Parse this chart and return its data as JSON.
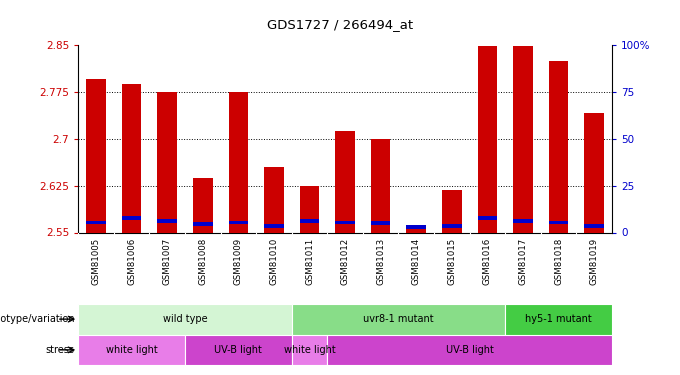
{
  "title": "GDS1727 / 266494_at",
  "samples": [
    "GSM81005",
    "GSM81006",
    "GSM81007",
    "GSM81008",
    "GSM81009",
    "GSM81010",
    "GSM81011",
    "GSM81012",
    "GSM81013",
    "GSM81014",
    "GSM81015",
    "GSM81016",
    "GSM81017",
    "GSM81018",
    "GSM81019"
  ],
  "red_values": [
    2.795,
    2.788,
    2.775,
    2.638,
    2.775,
    2.655,
    2.625,
    2.712,
    2.7,
    2.558,
    2.618,
    2.848,
    2.848,
    2.824,
    2.742
  ],
  "blue_values": [
    2.563,
    2.57,
    2.565,
    2.56,
    2.563,
    2.558,
    2.565,
    2.563,
    2.562,
    2.556,
    2.558,
    2.57,
    2.565,
    2.563,
    2.558
  ],
  "ymin": 2.55,
  "ymax": 2.85,
  "yticks": [
    2.55,
    2.625,
    2.7,
    2.775,
    2.85
  ],
  "ytick_labels": [
    "2.55",
    "2.625",
    "2.7",
    "2.775",
    "2.85"
  ],
  "right_yticks": [
    0,
    25,
    50,
    75,
    100
  ],
  "right_ytick_labels": [
    "0",
    "25",
    "50",
    "75",
    "100%"
  ],
  "genotype_groups": [
    {
      "label": "wild type",
      "start": 0,
      "end": 6,
      "color": "#d4f5d4"
    },
    {
      "label": "uvr8-1 mutant",
      "start": 6,
      "end": 12,
      "color": "#88dd88"
    },
    {
      "label": "hy5-1 mutant",
      "start": 12,
      "end": 15,
      "color": "#44cc44"
    }
  ],
  "stress_groups": [
    {
      "label": "white light",
      "start": 0,
      "end": 3,
      "color": "#e87de8"
    },
    {
      "label": "UV-B light",
      "start": 3,
      "end": 6,
      "color": "#cc44cc"
    },
    {
      "label": "white light",
      "start": 6,
      "end": 7,
      "color": "#e87de8"
    },
    {
      "label": "UV-B light",
      "start": 7,
      "end": 15,
      "color": "#cc44cc"
    }
  ],
  "bar_color": "#cc0000",
  "blue_color": "#0000cc",
  "bg_color": "#ffffff",
  "grid_color": "#000000",
  "label_color_left": "#cc0000",
  "label_color_right": "#0000cc",
  "tick_bg": "#d8d8d8"
}
